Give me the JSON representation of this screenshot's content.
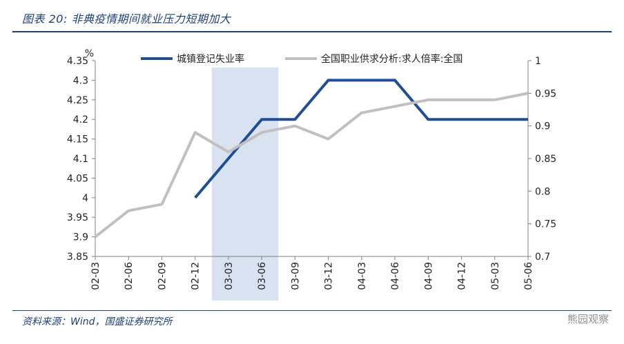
{
  "header": {
    "figure_title": "图表 20:  非典疫情期间就业压力短期加大"
  },
  "footer": {
    "source": "资料来源：Wind，国盛证券研究所",
    "watermark": "熊园观察"
  },
  "chart_data": {
    "type": "line",
    "x": [
      "02-03",
      "02-06",
      "02-09",
      "02-12",
      "03-03",
      "03-06",
      "03-09",
      "03-12",
      "04-03",
      "04-06",
      "04-09",
      "04-12",
      "05-03",
      "05-06"
    ],
    "left_axis_unit": "%",
    "ylim_left": [
      3.85,
      4.35
    ],
    "yticks_left": [
      "3.85",
      "3.9",
      "3.95",
      "4",
      "4.05",
      "4.1",
      "4.15",
      "4.2",
      "4.25",
      "4.3",
      "4.35"
    ],
    "ylim_right": [
      0.7,
      1.0
    ],
    "yticks_right": [
      "0.7",
      "0.75",
      "0.8",
      "0.85",
      "0.9",
      "0.95",
      "1"
    ],
    "shaded_period": [
      "03-03",
      "03-06"
    ],
    "legend_position": "top",
    "grid": false,
    "series": [
      {
        "name": "城镇登记失业率",
        "axis": "left",
        "color": "#1f4e96",
        "values": [
          null,
          null,
          null,
          4.0,
          4.1,
          4.2,
          4.2,
          4.3,
          4.3,
          4.3,
          4.2,
          4.2,
          4.2,
          4.2
        ]
      },
      {
        "name": "全国职业供求分析:求人倍率:全国",
        "axis": "right",
        "color": "#c0c0c0",
        "values": [
          0.73,
          0.77,
          0.78,
          0.89,
          0.86,
          0.89,
          0.9,
          0.88,
          0.92,
          0.93,
          0.94,
          0.94,
          0.94,
          0.95
        ]
      }
    ],
    "colors": {
      "shade": "#d9e2f0",
      "axis": "#808080"
    }
  }
}
